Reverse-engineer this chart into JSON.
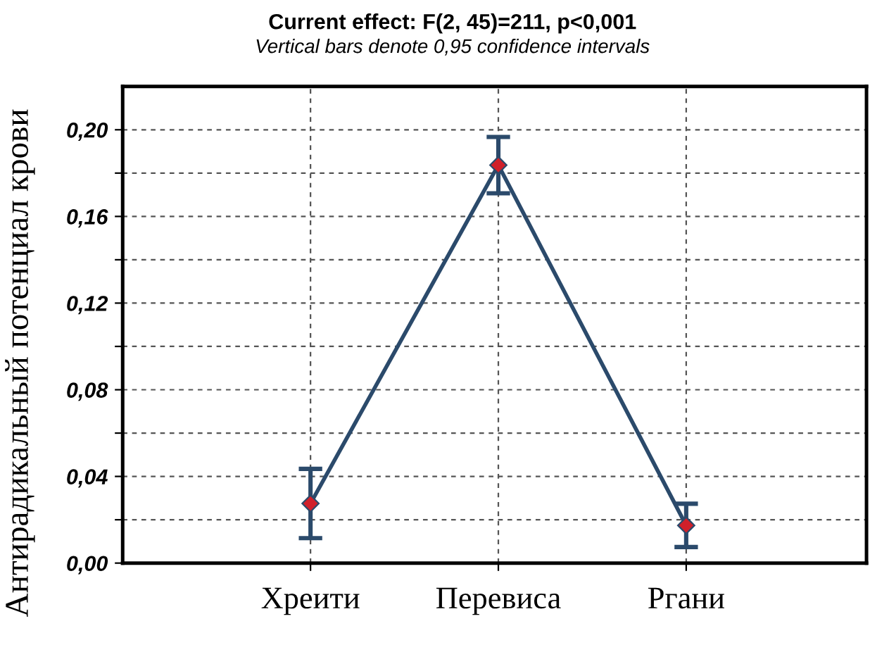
{
  "chart_data": {
    "type": "line",
    "title": "Current effect: F(2, 45)=211, p<0,001",
    "subtitle": "Vertical bars denote 0,95 confidence intervals",
    "ylabel": "Антирадикальный потенциал крови",
    "categories": [
      "Хреити",
      "Перевиса",
      "Ргани"
    ],
    "series": [
      {
        "color": "#2b4a6b",
        "values": [
          0.0275,
          0.1837,
          0.0174
        ],
        "errors": [
          0.016,
          0.013,
          0.01
        ]
      }
    ],
    "ylim": [
      0,
      0.22
    ],
    "yticks": [
      {
        "value": 0,
        "label": "0,00"
      },
      {
        "value": 0.02,
        "label": null
      },
      {
        "value": 0.04,
        "label": "0,04"
      },
      {
        "value": 0.06,
        "label": null
      },
      {
        "value": 0.08,
        "label": "0,08"
      },
      {
        "value": 0.1,
        "label": null
      },
      {
        "value": 0.12,
        "label": "0,12"
      },
      {
        "value": 0.14,
        "label": null
      },
      {
        "value": 0.16,
        "label": "0,16"
      },
      {
        "value": 0.18,
        "label": null
      },
      {
        "value": 0.2,
        "label": "0,20"
      }
    ],
    "grid": true,
    "marker": "diamond",
    "line_style": "solid"
  }
}
